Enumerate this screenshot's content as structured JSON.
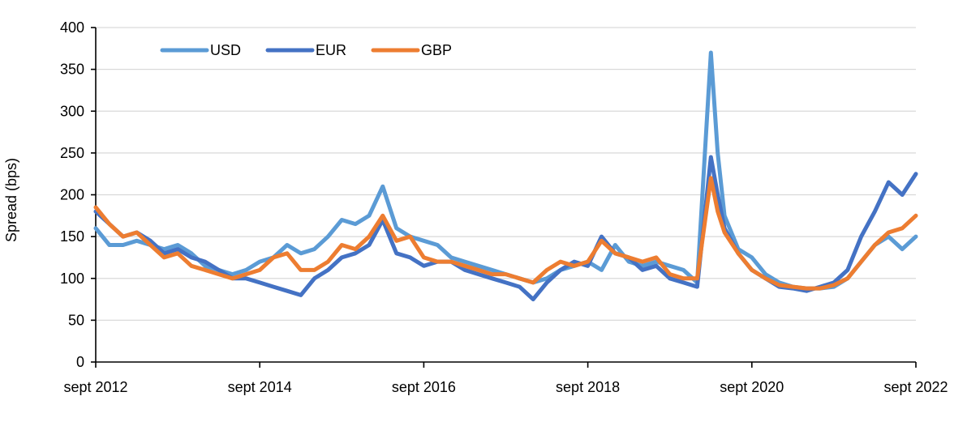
{
  "chart_data": {
    "type": "line",
    "ylabel": "Spread (bps)",
    "xlabel": "",
    "ylim": [
      0,
      400
    ],
    "yticks": [
      0,
      50,
      100,
      150,
      200,
      250,
      300,
      350,
      400
    ],
    "xlim": [
      "2012-09",
      "2022-09"
    ],
    "xticks": [
      {
        "date": "2012-09",
        "label": "sept 2012"
      },
      {
        "date": "2014-09",
        "label": "sept 2014"
      },
      {
        "date": "2016-09",
        "label": "sept 2016"
      },
      {
        "date": "2018-09",
        "label": "sept 2018"
      },
      {
        "date": "2020-09",
        "label": "sept 2020"
      },
      {
        "date": "2022-09",
        "label": "sept 2022"
      }
    ],
    "grid": "horizontal",
    "legend_position": "top-left",
    "x": [
      "2012-09",
      "2012-11",
      "2013-01",
      "2013-03",
      "2013-05",
      "2013-07",
      "2013-09",
      "2013-11",
      "2014-01",
      "2014-03",
      "2014-05",
      "2014-07",
      "2014-09",
      "2014-11",
      "2015-01",
      "2015-03",
      "2015-05",
      "2015-07",
      "2015-09",
      "2015-11",
      "2016-01",
      "2016-03",
      "2016-05",
      "2016-07",
      "2016-09",
      "2016-11",
      "2017-01",
      "2017-03",
      "2017-05",
      "2017-07",
      "2017-09",
      "2017-11",
      "2018-01",
      "2018-03",
      "2018-05",
      "2018-07",
      "2018-09",
      "2018-11",
      "2019-01",
      "2019-03",
      "2019-05",
      "2019-07",
      "2019-09",
      "2019-11",
      "2020-01",
      "2020-03",
      "2020-04",
      "2020-05",
      "2020-07",
      "2020-09",
      "2020-11",
      "2021-01",
      "2021-03",
      "2021-05",
      "2021-07",
      "2021-09",
      "2021-11",
      "2022-01",
      "2022-03",
      "2022-05",
      "2022-07",
      "2022-09"
    ],
    "series": [
      {
        "name": "USD",
        "color": "#5b9bd5",
        "values": [
          160,
          140,
          140,
          145,
          140,
          135,
          140,
          130,
          115,
          110,
          105,
          110,
          120,
          125,
          140,
          130,
          135,
          150,
          170,
          165,
          175,
          210,
          160,
          150,
          145,
          140,
          125,
          120,
          115,
          110,
          105,
          100,
          95,
          100,
          110,
          115,
          120,
          110,
          140,
          120,
          115,
          120,
          115,
          110,
          95,
          370,
          250,
          175,
          135,
          125,
          105,
          95,
          90,
          88,
          88,
          90,
          100,
          120,
          140,
          150,
          135,
          150
        ]
      },
      {
        "name": "EUR",
        "color": "#4472c4",
        "values": [
          180,
          165,
          150,
          155,
          145,
          130,
          135,
          125,
          120,
          110,
          100,
          100,
          95,
          90,
          85,
          80,
          100,
          110,
          125,
          130,
          140,
          170,
          130,
          125,
          115,
          120,
          120,
          110,
          105,
          100,
          95,
          90,
          75,
          95,
          110,
          120,
          115,
          150,
          130,
          125,
          110,
          115,
          100,
          95,
          90,
          245,
          200,
          160,
          130,
          110,
          100,
          90,
          88,
          85,
          90,
          95,
          110,
          150,
          180,
          215,
          200,
          225
        ]
      },
      {
        "name": "GBP",
        "color": "#ed7d31",
        "values": [
          185,
          165,
          150,
          155,
          140,
          125,
          130,
          115,
          110,
          105,
          100,
          105,
          110,
          125,
          130,
          110,
          110,
          120,
          140,
          135,
          150,
          175,
          145,
          150,
          125,
          120,
          120,
          115,
          110,
          105,
          105,
          100,
          95,
          110,
          120,
          115,
          120,
          145,
          130,
          125,
          120,
          125,
          105,
          100,
          100,
          220,
          180,
          155,
          130,
          110,
          100,
          92,
          90,
          88,
          88,
          92,
          100,
          120,
          140,
          155,
          160,
          175
        ]
      }
    ]
  }
}
